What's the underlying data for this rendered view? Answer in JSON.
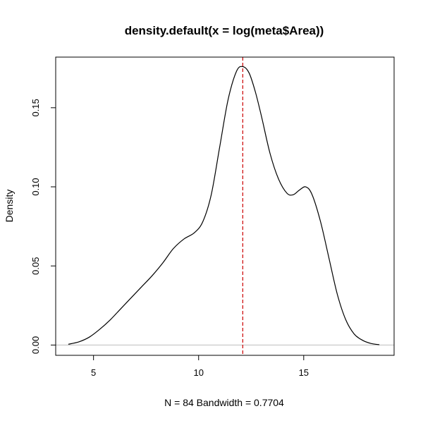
{
  "chart_data": {
    "type": "line",
    "title": "density.default(x = log(meta$Area))",
    "xlabel": "N = 84   Bandwidth = 0.7704",
    "ylabel": "Density",
    "xlim": [
      3.2,
      19.3
    ],
    "ylim": [
      -0.0065,
      0.182
    ],
    "xticks": [
      5,
      10,
      15
    ],
    "yticks": [
      0.0,
      0.05,
      0.1,
      0.15
    ],
    "xtick_labels": [
      "5",
      "10",
      "15"
    ],
    "ytick_labels": [
      "0.00",
      "0.05",
      "0.10",
      "0.15"
    ],
    "baseline_y": 0,
    "vline": {
      "x": 12.1,
      "style": "dashed",
      "color": "#cc0000"
    },
    "series": [
      {
        "color": "#000000",
        "x": [
          3.8,
          4.3,
          4.8,
          5.3,
          5.8,
          6.3,
          6.8,
          7.3,
          7.8,
          8.3,
          8.8,
          9.3,
          9.8,
          10.2,
          10.6,
          11.0,
          11.4,
          11.8,
          12.1,
          12.4,
          12.7,
          13.0,
          13.4,
          13.8,
          14.2,
          14.5,
          14.8,
          15.1,
          15.4,
          15.8,
          16.2,
          16.6,
          17.0,
          17.4,
          17.8,
          18.2,
          18.6
        ],
        "y": [
          0.0005,
          0.002,
          0.005,
          0.01,
          0.016,
          0.023,
          0.03,
          0.037,
          0.044,
          0.052,
          0.061,
          0.067,
          0.071,
          0.078,
          0.095,
          0.125,
          0.155,
          0.173,
          0.176,
          0.172,
          0.16,
          0.144,
          0.121,
          0.105,
          0.096,
          0.095,
          0.098,
          0.1,
          0.095,
          0.078,
          0.055,
          0.032,
          0.016,
          0.007,
          0.003,
          0.001,
          0.0002
        ]
      }
    ]
  }
}
